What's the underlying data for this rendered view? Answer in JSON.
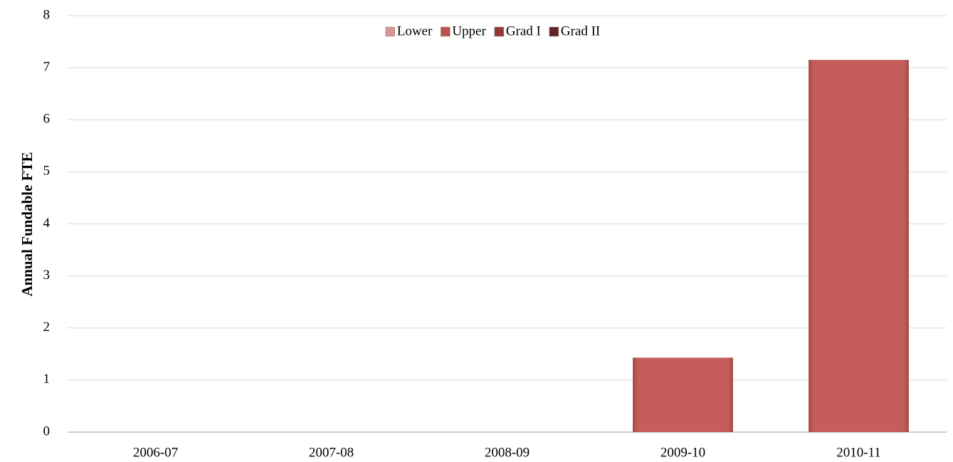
{
  "chart_data": {
    "type": "stacked_bar",
    "y_label": "Annual Fundable FTE",
    "categories": [
      "2006-07",
      "2007-08",
      "2008-09",
      "2009-10",
      "2010-11"
    ],
    "series": [
      {
        "name": "Lower",
        "color": "#d99694",
        "values": [
          0,
          0,
          0,
          0,
          0
        ]
      },
      {
        "name": "Upper",
        "color": "#c0504d",
        "values": [
          0,
          0,
          0,
          1.43,
          7.15
        ]
      },
      {
        "name": "Grad I",
        "color": "#953735",
        "values": [
          0,
          0,
          0,
          0,
          0
        ]
      },
      {
        "name": "Grad II",
        "color": "#632523",
        "values": [
          0,
          0,
          0,
          0,
          0
        ]
      }
    ],
    "ylim": [
      0,
      8
    ],
    "yticks": [
      0,
      1,
      2,
      3,
      4,
      5,
      6,
      7,
      8
    ],
    "grid": true,
    "legend": "top"
  }
}
